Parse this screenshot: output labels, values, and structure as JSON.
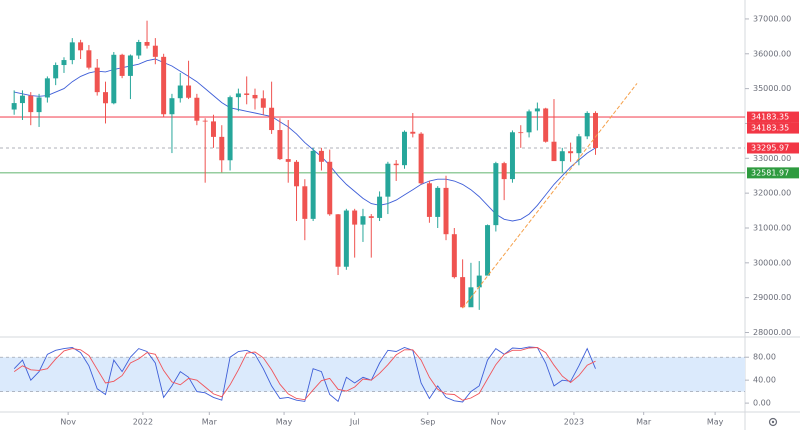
{
  "chart_data": [
    {
      "type": "candlestick",
      "xlim": [
        -0.5,
        88
      ],
      "ylim": [
        27900,
        37400
      ],
      "yticks": [
        {
          "value": 37000,
          "label": "37000.00"
        },
        {
          "value": 36000,
          "label": "36000.00"
        },
        {
          "value": 35000,
          "label": "35000.00"
        },
        {
          "value": 34000,
          "label": "34000.00"
        },
        {
          "value": 33000,
          "label": "33000.00"
        },
        {
          "value": 32000,
          "label": "32000.00"
        },
        {
          "value": 31000,
          "label": "31000.00"
        },
        {
          "value": 30000,
          "label": "30000.00"
        },
        {
          "value": 29000,
          "label": "29000.00"
        },
        {
          "value": 28000,
          "label": "28000.00"
        }
      ],
      "up_color": "#26a69a",
      "down_color": "#ef5350",
      "open": [
        34400,
        34585,
        34798,
        34326,
        34746,
        35295,
        35677,
        35820,
        36328,
        36100,
        35602,
        34899,
        34580,
        35971,
        35365,
        35951,
        36338,
        36232,
        35912,
        34265,
        34725,
        35089,
        34738,
        34079,
        34059,
        33615,
        32944,
        34755,
        34861,
        34818,
        34721,
        34451,
        33811,
        32977,
        32899,
        32197,
        31262,
        33213,
        32900,
        31393,
        29888,
        31501,
        31097,
        31338,
        31289,
        31899,
        32845,
        32803,
        33761,
        33707,
        32283,
        31318,
        32151,
        30822,
        29590,
        28725,
        29297,
        29634,
        31082,
        32861,
        32403,
        33747,
        33746,
        34347,
        34430,
        33476,
        32920,
        33203,
        33147,
        33631,
        34302
      ],
      "high": [
        34950,
        34950,
        34900,
        34850,
        35350,
        35750,
        35900,
        36450,
        36400,
        36250,
        35850,
        35200,
        36050,
        36000,
        35980,
        36400,
        36950,
        36450,
        36000,
        34850,
        35450,
        35800,
        34850,
        34150,
        34250,
        33950,
        34800,
        35000,
        35350,
        35000,
        34950,
        35200,
        34150,
        34100,
        32950,
        32400,
        33300,
        33300,
        33250,
        31400,
        31550,
        31550,
        31550,
        31400,
        32050,
        32900,
        32950,
        33800,
        34300,
        33750,
        32350,
        32200,
        32500,
        31000,
        30100,
        30000,
        30050,
        31100,
        32900,
        32900,
        33800,
        33950,
        34400,
        34600,
        34450,
        34700,
        33300,
        33450,
        33700,
        34350,
        34350
      ],
      "low": [
        34250,
        34100,
        33950,
        33900,
        34600,
        35100,
        35450,
        35700,
        35850,
        35550,
        34800,
        34000,
        34550,
        35300,
        34700,
        35850,
        36150,
        35700,
        34200,
        33150,
        34600,
        34700,
        33950,
        32300,
        33300,
        32600,
        32650,
        34350,
        34550,
        34400,
        34250,
        33700,
        32950,
        32300,
        31200,
        30650,
        31200,
        32650,
        31350,
        29650,
        29800,
        30150,
        30600,
        30150,
        31200,
        31400,
        32350,
        32700,
        33600,
        32250,
        31150,
        31000,
        30650,
        29550,
        28700,
        28750,
        28650,
        29650,
        30900,
        31800,
        32300,
        33300,
        33600,
        33800,
        33450,
        32950,
        32600,
        32900,
        32800,
        33550,
        33100
      ],
      "close": [
        34585,
        34798,
        34326,
        34746,
        35295,
        35677,
        35820,
        36328,
        36100,
        35602,
        34899,
        34580,
        35971,
        35365,
        35951,
        36338,
        36232,
        35912,
        34265,
        34725,
        35089,
        34738,
        34079,
        34059,
        33615,
        32944,
        34755,
        34861,
        34818,
        34721,
        34451,
        33811,
        32977,
        32899,
        32197,
        31262,
        33213,
        32900,
        31393,
        29888,
        31501,
        31097,
        31338,
        31289,
        31899,
        32845,
        32803,
        33761,
        33707,
        32283,
        31318,
        32151,
        30822,
        29590,
        28725,
        29297,
        29634,
        31082,
        32861,
        32403,
        33747,
        33746,
        34347,
        34430,
        33476,
        32920,
        33203,
        33147,
        33631,
        34302,
        33296
      ],
      "moving_average": {
        "color": "#3f5fd8",
        "values": [
          34900,
          34850,
          34800,
          34780,
          34800,
          34900,
          35000,
          35200,
          35350,
          35450,
          35500,
          35480,
          35550,
          35600,
          35650,
          35700,
          35800,
          35850,
          35750,
          35650,
          35500,
          35350,
          35200,
          35000,
          34800,
          34600,
          34450,
          34400,
          34350,
          34300,
          34250,
          34200,
          34050,
          33900,
          33700,
          33450,
          33250,
          33050,
          32800,
          32500,
          32250,
          32050,
          31850,
          31700,
          31650,
          31700,
          31800,
          31950,
          32100,
          32250,
          32350,
          32400,
          32400,
          32350,
          32250,
          32100,
          31900,
          31650,
          31400,
          31250,
          31200,
          31250,
          31400,
          31650,
          31950,
          32250,
          32500,
          32750,
          32950,
          33150,
          33300
        ]
      },
      "trendline": {
        "color": "#f5a04a",
        "x": [
          54,
          75
        ],
        "y": [
          28700,
          35150
        ]
      },
      "levels": [
        {
          "value": 34183.35,
          "color": "#f23645",
          "line": "solid"
        },
        {
          "value": 34183.35,
          "color": "#f23645",
          "line": "solid"
        },
        {
          "value": 33295.97,
          "color": "#f23645",
          "line": "dashed"
        },
        {
          "value": 32581.97,
          "color": "#2e9b3f",
          "line": "solid"
        }
      ]
    },
    {
      "type": "line",
      "xlim": [
        -0.5,
        88
      ],
      "ylim": [
        -12,
        110
      ],
      "yticks": [
        {
          "value": 80,
          "label": "80.00"
        },
        {
          "value": 40,
          "label": "40.00"
        },
        {
          "value": 0,
          "label": "0.00"
        }
      ],
      "band": [
        20,
        80
      ],
      "band_color": "#dbeafc",
      "xticks": [
        {
          "value": 6.5,
          "label": "Nov"
        },
        {
          "value": 15.5,
          "label": "2022"
        },
        {
          "value": 23.5,
          "label": "Mar"
        },
        {
          "value": 32.5,
          "label": "May"
        },
        {
          "value": 41,
          "label": "Jul"
        },
        {
          "value": 49.8,
          "label": "Sep"
        },
        {
          "value": 58.3,
          "label": "Nov"
        },
        {
          "value": 67.4,
          "label": "2023"
        },
        {
          "value": 75.8,
          "label": "Mar"
        },
        {
          "value": 84.4,
          "label": "May"
        }
      ],
      "series": [
        {
          "color": "#3f5fd8",
          "values": [
            60,
            75,
            40,
            55,
            85,
            92,
            95,
            97,
            88,
            65,
            25,
            15,
            75,
            55,
            80,
            95,
            90,
            70,
            10,
            30,
            55,
            45,
            20,
            18,
            10,
            5,
            80,
            90,
            92,
            85,
            60,
            30,
            8,
            10,
            5,
            3,
            60,
            55,
            15,
            3,
            45,
            35,
            45,
            40,
            70,
            92,
            90,
            97,
            92,
            35,
            8,
            30,
            10,
            4,
            2,
            20,
            30,
            75,
            95,
            85,
            96,
            95,
            98,
            97,
            70,
            30,
            40,
            38,
            65,
            95,
            60
          ]
        },
        {
          "color": "#f0545a",
          "values": [
            55,
            65,
            58,
            57,
            60,
            77,
            91,
            95,
            93,
            83,
            59,
            35,
            38,
            48,
            70,
            77,
            88,
            85,
            57,
            37,
            32,
            43,
            40,
            28,
            16,
            11,
            32,
            58,
            87,
            89,
            79,
            58,
            33,
            16,
            8,
            6,
            23,
            39,
            43,
            24,
            21,
            28,
            42,
            40,
            52,
            67,
            84,
            93,
            93,
            75,
            45,
            24,
            16,
            15,
            5,
            9,
            17,
            42,
            67,
            85,
            92,
            92,
            96,
            97,
            88,
            66,
            47,
            36,
            48,
            66,
            73
          ]
        }
      ]
    }
  ]
}
